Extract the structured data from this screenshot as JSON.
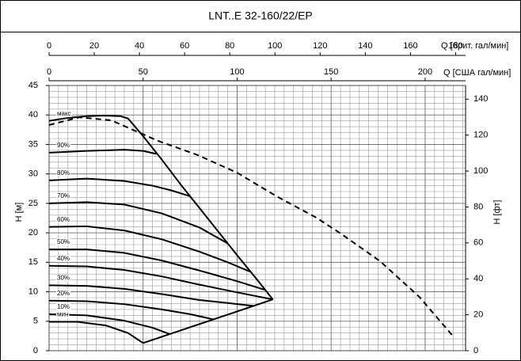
{
  "chart_data": {
    "type": "line",
    "title": "LNT..E 32-160/22/EP",
    "xlabel": "Q [США гал/мин]",
    "x2label": "Q [брит. гал/мин]",
    "ylabel": "H [м]",
    "y2label": "H [фт]",
    "xlim": [
      0,
      221.5
    ],
    "xticks": [
      0,
      50,
      100,
      150,
      200
    ],
    "x2lim": [
      0,
      184.4
    ],
    "x2ticks": [
      0,
      20,
      40,
      60,
      80,
      100,
      120,
      140,
      160,
      180
    ],
    "ylim": [
      0,
      45
    ],
    "yticks": [
      0,
      5,
      10,
      15,
      20,
      25,
      30,
      35,
      40,
      45
    ],
    "y2lim": [
      0,
      147.6
    ],
    "y2ticks": [
      0,
      20,
      40,
      60,
      80,
      100,
      120,
      140
    ],
    "grid": true,
    "minor_grid": {
      "x": 5,
      "y": 1
    },
    "series": [
      {
        "name": "макс",
        "color": "#000000",
        "dashed": false,
        "x": [
          0,
          10,
          20,
          30,
          38,
          42,
          50,
          60,
          70,
          75,
          90,
          100,
          110,
          119
        ],
        "values": [
          39.0,
          39.5,
          39.8,
          39.9,
          39.8,
          39.4,
          36.4,
          32.4,
          28.2,
          26.2,
          20.2,
          16.2,
          12.3,
          8.7
        ]
      },
      {
        "color": "#000000",
        "dashed": true,
        "x": [
          0,
          16,
          33,
          58,
          79,
          100,
          121,
          142,
          155,
          176,
          197,
          215
        ],
        "values": [
          38.3,
          39.6,
          39.1,
          35.6,
          33.2,
          30.2,
          26.2,
          22.6,
          19.9,
          15.2,
          9.1,
          2.4
        ]
      },
      {
        "name": "90%",
        "color": "#000000",
        "dashed": false,
        "x": [
          0,
          20,
          40,
          50,
          57
        ],
        "values": [
          33.6,
          33.9,
          34.1,
          33.9,
          33.4
        ]
      },
      {
        "name": "80%",
        "color": "#000000",
        "dashed": false,
        "x": [
          0,
          20,
          40,
          55,
          65,
          75
        ],
        "values": [
          28.9,
          29.2,
          28.8,
          28.0,
          27.2,
          26.2
        ]
      },
      {
        "name": "70%",
        "color": "#000000",
        "dashed": false,
        "x": [
          0,
          20,
          40,
          60,
          80,
          95
        ],
        "values": [
          25.0,
          25.2,
          24.8,
          23.3,
          20.9,
          18.2
        ]
      },
      {
        "name": "60%",
        "color": "#000000",
        "dashed": false,
        "x": [
          0,
          20,
          40,
          60,
          80,
          95,
          107
        ],
        "values": [
          21.0,
          21.1,
          20.4,
          18.9,
          16.8,
          15.0,
          13.4
        ]
      },
      {
        "name": "50%",
        "color": "#000000",
        "dashed": false,
        "x": [
          0,
          20,
          40,
          60,
          80,
          100,
          115
        ],
        "values": [
          17.2,
          17.2,
          16.6,
          15.3,
          13.6,
          11.8,
          10.3
        ]
      },
      {
        "name": "40%",
        "color": "#000000",
        "dashed": false,
        "x": [
          0,
          20,
          40,
          60,
          80,
          100,
          119
        ],
        "values": [
          14.4,
          14.3,
          13.7,
          12.6,
          11.2,
          9.9,
          8.7
        ]
      },
      {
        "name": "30%",
        "color": "#000000",
        "dashed": false,
        "x": [
          0,
          20,
          40,
          60,
          80,
          95,
          108.6
        ],
        "values": [
          11.1,
          11.0,
          10.5,
          9.6,
          8.6,
          8.1,
          7.6
        ]
      },
      {
        "name": "20%",
        "color": "#000000",
        "dashed": false,
        "x": [
          0,
          20,
          40,
          60,
          75,
          87.6
        ],
        "values": [
          8.5,
          8.4,
          7.9,
          7.0,
          6.2,
          5.3
        ]
      },
      {
        "name": "10%",
        "color": "#000000",
        "dashed": false,
        "x": [
          0,
          20,
          40,
          55,
          64.4
        ],
        "values": [
          6.2,
          6.0,
          5.1,
          3.9,
          2.8
        ]
      },
      {
        "name": "мин",
        "color": "#000000",
        "dashed": false,
        "x": [
          0,
          15,
          30,
          42,
          50
        ],
        "values": [
          4.9,
          4.9,
          4.3,
          3.0,
          1.3
        ]
      },
      {
        "color": "#000000",
        "dashed": false,
        "x": [
          119,
          50
        ],
        "values": [
          8.7,
          1.3
        ]
      }
    ]
  }
}
